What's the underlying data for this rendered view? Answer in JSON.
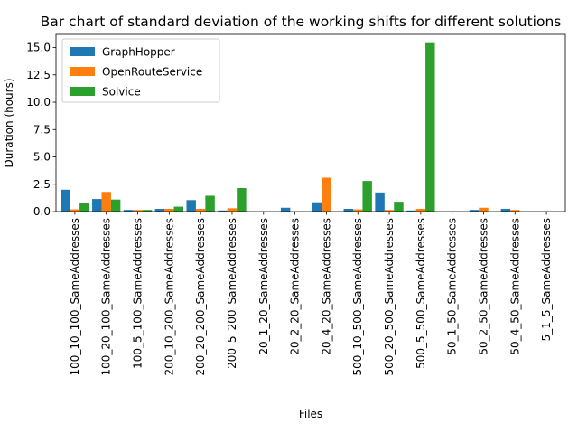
{
  "chart_data": {
    "type": "bar",
    "title": "Bar chart of standard deviation of the working shifts for different solutions",
    "xlabel": "Files",
    "ylabel": "Duration (hours)",
    "ylim": [
      0,
      16.2
    ],
    "yticks": [
      0.0,
      2.5,
      5.0,
      7.5,
      10.0,
      12.5,
      15.0
    ],
    "ytick_labels": [
      "0.0",
      "2.5",
      "5.0",
      "7.5",
      "10.0",
      "12.5",
      "15.0"
    ],
    "grid": false,
    "legend_position": "top-left",
    "categories": [
      "100_10_100_SameAddresses",
      "100_20_100_SameAddresses",
      "100_5_100_SameAddresses",
      "200_10_200_SameAddresses",
      "200_20_200_SameAddresses",
      "200_5_200_SameAddresses",
      "20_1_20_SameAddresses",
      "20_2_20_SameAddresses",
      "20_4_20_SameAddresses",
      "500_10_500_SameAddresses",
      "500_20_500_SameAddresses",
      "500_5_500_SameAddresses",
      "50_1_50_SameAddresses",
      "50_2_50_SameAddresses",
      "50_4_50_SameAddresses",
      "5_1_5_SameAddresses"
    ],
    "series": [
      {
        "name": "GraphHopper",
        "color": "#1f77b4",
        "values": [
          2.0,
          1.15,
          0.15,
          0.25,
          1.05,
          0.1,
          0.0,
          0.35,
          0.85,
          0.25,
          1.75,
          0.1,
          0.0,
          0.15,
          0.25,
          0.0
        ]
      },
      {
        "name": "OpenRouteService",
        "color": "#ff7f0e",
        "values": [
          0.2,
          1.8,
          0.15,
          0.25,
          0.25,
          0.3,
          0.0,
          0.0,
          3.1,
          0.2,
          0.15,
          0.25,
          0.0,
          0.35,
          0.15,
          0.0
        ]
      },
      {
        "name": "Solvice",
        "color": "#2ca02c",
        "values": [
          0.8,
          1.1,
          0.15,
          0.45,
          1.45,
          2.15,
          0.0,
          0.0,
          0.0,
          2.8,
          0.9,
          15.4,
          0.0,
          0.0,
          0.0,
          0.0
        ]
      }
    ]
  }
}
